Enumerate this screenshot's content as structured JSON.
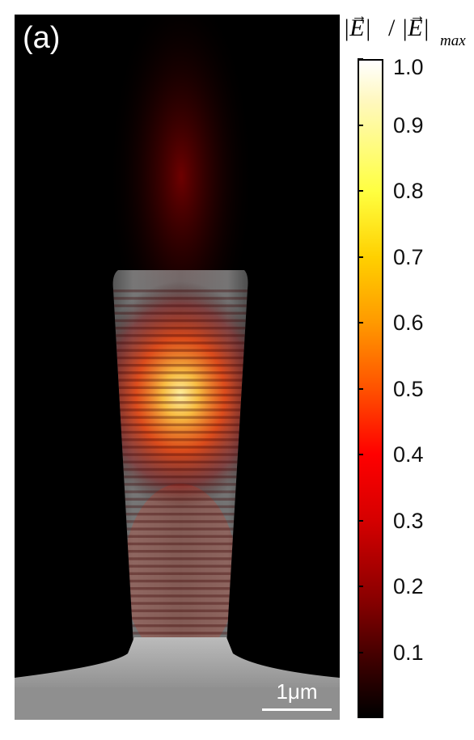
{
  "panel_label": "(a)",
  "scale_bar_label": "1μm",
  "colorbar": {
    "title_lhs": "|E|",
    "title_slash": "/",
    "title_rhs": "|E|",
    "title_subscript": "max",
    "tick_labels": [
      "1.0",
      "0.9",
      "0.8",
      "0.7",
      "0.6",
      "0.5",
      "0.4",
      "0.3",
      "0.2",
      "0.1"
    ],
    "tick_values": [
      1.0,
      0.9,
      0.8,
      0.7,
      0.6,
      0.5,
      0.4,
      0.3,
      0.2,
      0.1
    ],
    "range": [
      0,
      1.0
    ],
    "colormap": "black-red-yellow-white"
  },
  "colors": {
    "background": "#000000",
    "glow": "#ff2000",
    "hotspot": "#ffd060",
    "structure": "#cfcfcf",
    "substrate": "#9a9a9a"
  }
}
